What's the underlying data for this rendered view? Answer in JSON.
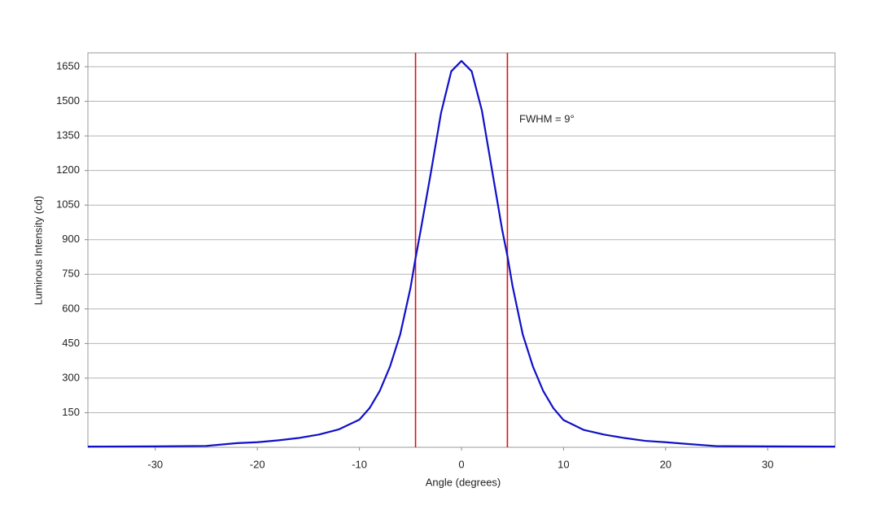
{
  "chart_data": {
    "type": "line",
    "x_label": "Angle (degrees)",
    "y_label": "Luminous Intensity (cd)",
    "xlim": [
      -36.6,
      36.6
    ],
    "ylim": [
      0,
      1710
    ],
    "xticks": [
      -30,
      -20,
      -10,
      0,
      10,
      20,
      30
    ],
    "yticks": [
      150,
      300,
      450,
      600,
      750,
      900,
      1050,
      1200,
      1350,
      1500,
      1650
    ],
    "grid": true,
    "series": [
      {
        "color": "#1010c8",
        "x": [
          -36.6,
          -30,
          -25,
          -22,
          -20,
          -18,
          -16,
          -14,
          -12,
          -10,
          -9,
          -8,
          -7,
          -6,
          -5,
          -4.5,
          -4,
          -3,
          -2,
          -1,
          0,
          1,
          2,
          3,
          4,
          4.5,
          5,
          6,
          7,
          8,
          9,
          10,
          12,
          14,
          16,
          18,
          20,
          22,
          25,
          30,
          36.6
        ],
        "values": [
          3,
          4,
          6,
          18,
          22,
          30,
          40,
          55,
          78,
          120,
          170,
          245,
          350,
          490,
          690,
          820,
          940,
          1190,
          1450,
          1630,
          1675,
          1630,
          1460,
          1200,
          940,
          830,
          700,
          490,
          350,
          245,
          170,
          118,
          75,
          55,
          40,
          28,
          22,
          15,
          5,
          4,
          3
        ]
      }
    ],
    "vlines": [
      {
        "x": -4.5,
        "color": "#dd1111"
      },
      {
        "x": 4.5,
        "color": "#dd1111"
      }
    ],
    "annotation": "FWHM = 9°"
  }
}
